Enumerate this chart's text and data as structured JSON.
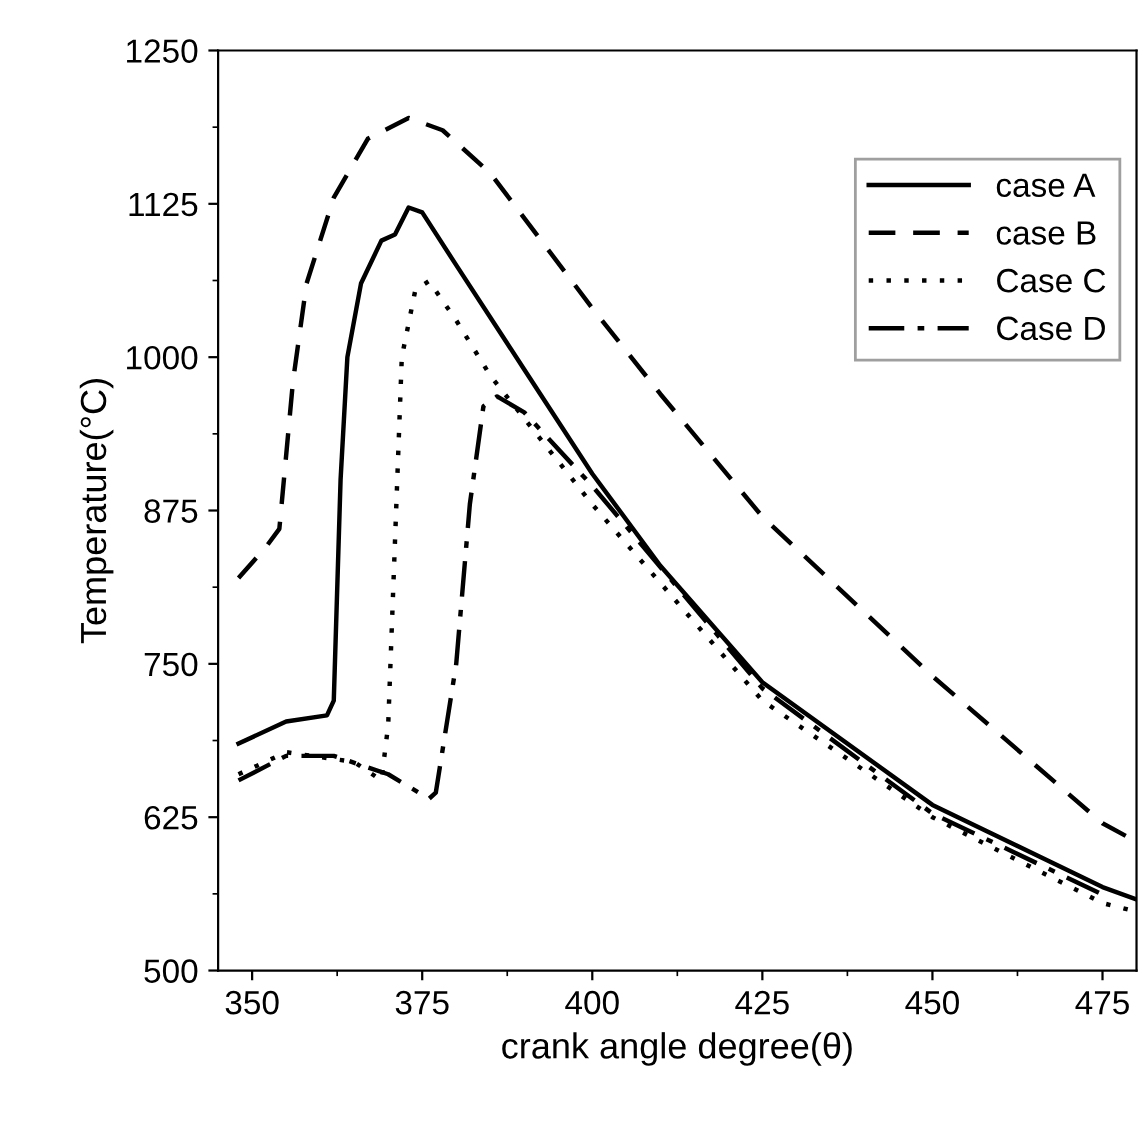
{
  "chart_data": {
    "type": "line",
    "xlabel": "crank angle degree(θ)",
    "ylabel": "Temperature(°C)",
    "xlim": [
      345,
      480
    ],
    "ylim": [
      500,
      1250
    ],
    "xticks": [
      350,
      375,
      400,
      425,
      450,
      475
    ],
    "yticks": [
      500,
      625,
      750,
      875,
      1000,
      1125,
      1250
    ],
    "grid": false,
    "legend": "top right",
    "marker": "none",
    "series": [
      {
        "name": "case A",
        "color": "#000000",
        "line_style": "solid",
        "x": [
          348,
          355,
          361,
          362,
          363,
          364,
          366,
          369,
          371,
          373,
          375,
          380,
          390,
          400,
          410,
          425,
          450,
          475,
          480
        ],
        "values": [
          685,
          703,
          708,
          720,
          900,
          1000,
          1060,
          1095,
          1100,
          1122,
          1118,
          1075,
          990,
          905,
          830,
          735,
          635,
          568,
          558
        ]
      },
      {
        "name": "case B",
        "color": "#000000",
        "line_style": "dashed",
        "x": [
          348,
          352,
          354,
          356,
          358,
          362,
          367,
          373,
          378,
          385,
          400,
          410,
          425,
          450,
          475,
          480
        ],
        "values": [
          820,
          845,
          860,
          980,
          1060,
          1130,
          1178,
          1195,
          1185,
          1150,
          1040,
          970,
          870,
          740,
          620,
          605
        ]
      },
      {
        "name": "Case C",
        "color": "#000000",
        "line_style": "dotted",
        "x": [
          348,
          355,
          365,
          369,
          370,
          371,
          372,
          374,
          376,
          380,
          385,
          390,
          400,
          425,
          450,
          475,
          480
        ],
        "values": [
          660,
          678,
          670,
          655,
          700,
          850,
          1000,
          1055,
          1062,
          1030,
          985,
          950,
          880,
          720,
          625,
          555,
          548
        ]
      },
      {
        "name": "Case D",
        "color": "#000000",
        "line_style": "dashdot",
        "x": [
          348,
          355,
          362,
          370,
          376,
          377,
          380,
          382,
          384,
          386,
          390,
          400,
          425,
          450,
          475
        ],
        "values": [
          655,
          675,
          675,
          660,
          640,
          645,
          750,
          880,
          960,
          968,
          955,
          895,
          730,
          628,
          562
        ]
      }
    ]
  }
}
